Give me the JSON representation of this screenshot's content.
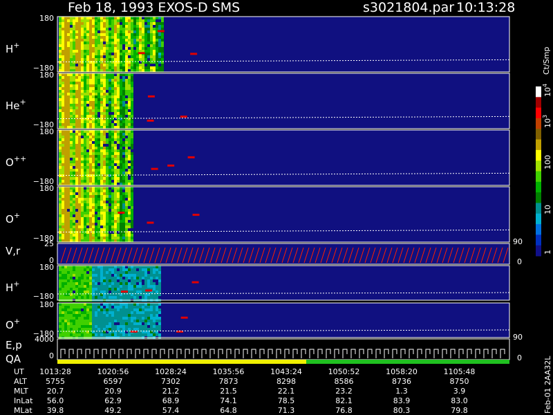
{
  "header": {
    "title": "Feb 18, 1993   EXOS-D SMS",
    "file": "s3021804.par",
    "time": "10:13:28"
  },
  "panels": [
    {
      "label": "H",
      "charge": "+",
      "top": "180",
      "bottom": "−180"
    },
    {
      "label": "He",
      "charge": "+",
      "top": "180",
      "bottom": "−180"
    },
    {
      "label": "O",
      "charge": "++",
      "top": "180",
      "bottom": "−180"
    },
    {
      "label": "O",
      "charge": "+",
      "top": "180",
      "bottom": "−180"
    },
    {
      "label": "H",
      "charge": "+",
      "top": "180",
      "bottom": "−180"
    },
    {
      "label": "O",
      "charge": "+",
      "top": "180",
      "bottom": "−180"
    }
  ],
  "vr_panel": {
    "label": "V,r",
    "top": "25",
    "bottom": "0",
    "right_top": "90",
    "right_bottom": "0"
  },
  "ep_panel": {
    "label": "E,p",
    "label2": "QA",
    "top": "4000",
    "bottom": "0",
    "right_top": "90",
    "right_bottom": "0"
  },
  "colorbar": {
    "unit": "Ct/Smp",
    "labels": [
      {
        "base": "10",
        "exp": "4"
      },
      {
        "base": "10",
        "exp": "3"
      },
      {
        "base": "100",
        "exp": ""
      },
      {
        "base": "10",
        "exp": ""
      },
      {
        "base": "1",
        "exp": ""
      }
    ]
  },
  "footer": "Feb-01 2AA32L",
  "table": {
    "rows": [
      {
        "label": "UT",
        "values": [
          "1013:28",
          "1020:56",
          "1028:24",
          "1035:56",
          "1043:24",
          "1050:52",
          "1058:20",
          "1105:48"
        ]
      },
      {
        "label": "ALT",
        "values": [
          "5755",
          "6597",
          "7302",
          "7873",
          "8298",
          "8586",
          "8736",
          "8750"
        ]
      },
      {
        "label": "MLT",
        "values": [
          "20.7",
          "20.9",
          "21.2",
          "21.5",
          "22.1",
          "23.2",
          "1.3",
          "3.9"
        ]
      },
      {
        "label": "InLat",
        "values": [
          "56.0",
          "62.9",
          "68.9",
          "74.1",
          "78.5",
          "82.1",
          "83.9",
          "83.0"
        ]
      },
      {
        "label": "MLat",
        "values": [
          "39.8",
          "49.2",
          "57.4",
          "64.8",
          "71.3",
          "76.8",
          "80.3",
          "79.8"
        ]
      }
    ]
  }
}
